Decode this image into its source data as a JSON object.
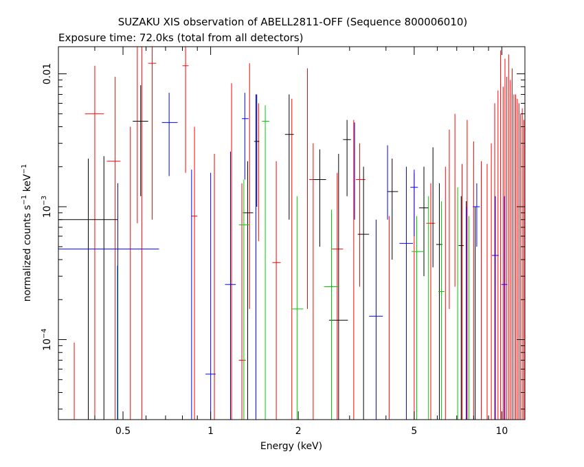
{
  "chart_data": {
    "type": "scatter",
    "title": "SUZAKU XIS observation of ABELL2811-OFF (Sequence 800006010)",
    "subtitle": "Exposure time: 72.0ks (total from all detectors)",
    "xlabel": "Energy (keV)",
    "ylabel_parts": {
      "base": "normalized counts s",
      "exp1": "−1",
      "mid": " keV",
      "exp2": "−1"
    },
    "x_scale": "log",
    "y_scale": "log",
    "xlim": [
      0.3,
      12
    ],
    "ylim": [
      2.5e-05,
      0.016
    ],
    "x_ticks": [
      {
        "value": 0.5,
        "label": "0.5"
      },
      {
        "value": 1,
        "label": "1"
      },
      {
        "value": 2,
        "label": "2"
      },
      {
        "value": 5,
        "label": "5"
      },
      {
        "value": 10,
        "label": "10"
      }
    ],
    "y_ticks": [
      {
        "value": 0.0001,
        "base": "10",
        "exp": "−4"
      },
      {
        "value": 0.001,
        "base": "10",
        "exp": "−3"
      },
      {
        "value": 0.01,
        "label": "0.01"
      }
    ],
    "grid": false,
    "legend": "none",
    "series": [
      {
        "color": "#ff0000",
        "points": [
          {
            "x": 0.34,
            "y": 2.5e-05,
            "ylo": 2.5e-05,
            "yhi": 9.5e-05
          },
          {
            "x": 0.4,
            "y": 0.005,
            "ylo": 2.5e-05,
            "yhi": 0.0115,
            "xlo": 0.37,
            "xhi": 0.43
          },
          {
            "x": 0.47,
            "y": 0.0022,
            "ylo": 2.5e-05,
            "yhi": 0.0095,
            "xlo": 0.44,
            "xhi": 0.49
          },
          {
            "x": 0.53,
            "y": 2.5e-05,
            "ylo": 2.5e-05,
            "yhi": 0.004
          },
          {
            "x": 0.56,
            "y": 0.016,
            "ylo": 0.00075,
            "yhi": 0.016
          },
          {
            "x": 0.58,
            "y": 0.0023,
            "ylo": 2.5e-05,
            "yhi": 0.016
          },
          {
            "x": 0.63,
            "y": 0.012,
            "ylo": 0.0008,
            "yhi": 0.016,
            "xlo": 0.61,
            "xhi": 0.65
          },
          {
            "x": 0.82,
            "y": 0.0115,
            "ylo": 0.0018,
            "yhi": 0.016,
            "xlo": 0.8,
            "xhi": 0.84
          },
          {
            "x": 0.88,
            "y": 0.00085,
            "ylo": 2.5e-05,
            "yhi": 0.004,
            "xlo": 0.86,
            "xhi": 0.9
          },
          {
            "x": 1.03,
            "y": 2.5e-05,
            "ylo": 2.5e-05,
            "yhi": 0.0025
          },
          {
            "x": 1.18,
            "y": 0.0035,
            "ylo": 2.5e-05,
            "yhi": 0.0085
          },
          {
            "x": 1.28,
            "y": 7e-05,
            "ylo": 2.5e-05,
            "yhi": 0.0015,
            "xlo": 1.25,
            "xhi": 1.32
          },
          {
            "x": 1.36,
            "y": 0.0055,
            "ylo": 0.00017,
            "yhi": 0.012
          },
          {
            "x": 1.46,
            "y": 0.003,
            "ylo": 0.00055,
            "yhi": 0.006
          },
          {
            "x": 1.68,
            "y": 0.00038,
            "ylo": 2.5e-05,
            "yhi": 0.0022,
            "xlo": 1.63,
            "xhi": 1.74
          },
          {
            "x": 1.9,
            "y": 0.002,
            "ylo": 2.5e-05,
            "yhi": 0.0065
          },
          {
            "x": 2.15,
            "y": 0.0047,
            "ylo": 0.00017,
            "yhi": 0.011
          },
          {
            "x": 2.25,
            "y": 0.0016,
            "ylo": 2.5e-05,
            "yhi": 0.003,
            "xlo": 2.18,
            "xhi": 2.33
          },
          {
            "x": 2.72,
            "y": 0.00048,
            "ylo": 2.5e-05,
            "yhi": 0.0018,
            "xlo": 2.6,
            "xhi": 2.85
          },
          {
            "x": 3.1,
            "y": 0.0029,
            "ylo": 2.5e-05,
            "yhi": 0.0045
          },
          {
            "x": 3.25,
            "y": 0.0016,
            "ylo": 0.00025,
            "yhi": 0.003,
            "xlo": 3.15,
            "xhi": 3.4
          },
          {
            "x": 4.1,
            "y": 2.5e-05,
            "ylo": 2.5e-05,
            "yhi": 0.00085
          },
          {
            "x": 5.0,
            "y": 2.5e-05,
            "ylo": 2.5e-05,
            "yhi": 0.0018
          },
          {
            "x": 5.7,
            "y": 0.00075,
            "ylo": 2.5e-05,
            "yhi": 0.0015,
            "xlo": 5.5,
            "xhi": 5.9
          },
          {
            "x": 6.4,
            "y": 0.00095,
            "ylo": 2.5e-05,
            "yhi": 0.002
          },
          {
            "x": 6.6,
            "y": 0.0022,
            "ylo": 0.00017,
            "yhi": 0.0038
          },
          {
            "x": 6.9,
            "y": 0.0028,
            "ylo": 0.00025,
            "yhi": 0.005
          },
          {
            "x": 7.3,
            "y": 0.00055,
            "ylo": 2.5e-05,
            "yhi": 0.0021
          },
          {
            "x": 7.6,
            "y": 0.00095,
            "ylo": 2.5e-05,
            "yhi": 0.0045
          },
          {
            "x": 8.0,
            "y": 0.0011,
            "ylo": 2.5e-05,
            "yhi": 0.0031
          },
          {
            "x": 8.5,
            "y": 0.0008,
            "ylo": 2.5e-05,
            "yhi": 0.0022
          },
          {
            "x": 8.9,
            "y": 0.0007,
            "ylo": 2.5e-05,
            "yhi": 0.0021
          },
          {
            "x": 9.2,
            "y": 0.0009,
            "ylo": 2.5e-05,
            "yhi": 0.003
          },
          {
            "x": 9.45,
            "y": 0.0018,
            "ylo": 2.5e-05,
            "yhi": 0.006
          },
          {
            "x": 9.7,
            "y": 0.0012,
            "ylo": 2.5e-05,
            "yhi": 0.0075
          },
          {
            "x": 9.9,
            "y": 0.0028,
            "ylo": 2.5e-05,
            "yhi": 0.015
          },
          {
            "x": 10.1,
            "y": 0.0022,
            "ylo": 2.5e-05,
            "yhi": 0.008
          },
          {
            "x": 10.25,
            "y": 0.004,
            "ylo": 2.5e-05,
            "yhi": 0.013
          },
          {
            "x": 10.4,
            "y": 0.0018,
            "ylo": 2.5e-05,
            "yhi": 0.0095
          },
          {
            "x": 10.55,
            "y": 0.006,
            "ylo": 2.5e-05,
            "yhi": 0.014
          },
          {
            "x": 10.7,
            "y": 0.003,
            "ylo": 2.5e-05,
            "yhi": 0.009
          },
          {
            "x": 10.85,
            "y": 0.0045,
            "ylo": 2.5e-05,
            "yhi": 0.011
          },
          {
            "x": 11.0,
            "y": 0.0055,
            "ylo": 2.5e-05,
            "yhi": 0.007
          },
          {
            "x": 11.15,
            "y": 0.0032,
            "ylo": 2.5e-05,
            "yhi": 0.007
          },
          {
            "x": 11.3,
            "y": 0.005,
            "ylo": 2.5e-05,
            "yhi": 0.0065
          },
          {
            "x": 11.45,
            "y": 0.0025,
            "ylo": 2.5e-05,
            "yhi": 0.006
          },
          {
            "x": 11.6,
            "y": 0.0035,
            "ylo": 2.5e-05,
            "yhi": 0.005
          },
          {
            "x": 11.75,
            "y": 0.002,
            "ylo": 2.5e-05,
            "yhi": 0.0055
          },
          {
            "x": 11.9,
            "y": 0.003,
            "ylo": 2.5e-05,
            "yhi": 0.0045
          }
        ]
      },
      {
        "color": "#000000",
        "points": [
          {
            "x": 0.38,
            "y": 0.0008,
            "ylo": 2.5e-05,
            "yhi": 0.0023,
            "xlo": 0.3,
            "xhi": 0.48
          },
          {
            "x": 0.43,
            "y": 2.5e-05,
            "ylo": 2.5e-05,
            "yhi": 0.0024
          },
          {
            "x": 0.575,
            "y": 0.0044,
            "ylo": 0.0012,
            "yhi": 0.0082,
            "xlo": 0.54,
            "xhi": 0.61
          },
          {
            "x": 1.34,
            "y": 0.0009,
            "ylo": 2.5e-05,
            "yhi": 0.0022,
            "xlo": 1.29,
            "xhi": 1.4
          },
          {
            "x": 1.44,
            "y": 0.0031,
            "ylo": 0.001,
            "yhi": 0.007,
            "xlo": 1.41,
            "xhi": 1.47
          },
          {
            "x": 1.86,
            "y": 0.0035,
            "ylo": 0.0008,
            "yhi": 0.007,
            "xlo": 1.8,
            "xhi": 1.93
          },
          {
            "x": 2.37,
            "y": 0.0016,
            "ylo": 0.0005,
            "yhi": 0.0027,
            "xlo": 2.25,
            "xhi": 2.49
          },
          {
            "x": 2.75,
            "y": 0.00014,
            "ylo": 2.5e-05,
            "yhi": 0.0025,
            "xlo": 2.55,
            "xhi": 2.96
          },
          {
            "x": 2.94,
            "y": 0.0032,
            "ylo": 0.0012,
            "yhi": 0.0045,
            "xlo": 2.85,
            "xhi": 3.03
          },
          {
            "x": 3.35,
            "y": 0.00062,
            "ylo": 2.5e-05,
            "yhi": 0.002,
            "xlo": 3.2,
            "xhi": 3.5
          },
          {
            "x": 4.2,
            "y": 0.0013,
            "ylo": 0.0004,
            "yhi": 0.0023,
            "xlo": 4.05,
            "xhi": 4.4
          },
          {
            "x": 5.4,
            "y": 0.00098,
            "ylo": 0.0003,
            "yhi": 0.002,
            "xlo": 5.2,
            "xhi": 5.6
          },
          {
            "x": 5.8,
            "y": 0.0013,
            "ylo": 0.00035,
            "yhi": 0.0028
          },
          {
            "x": 6.1,
            "y": 0.00052,
            "ylo": 2.5e-05,
            "yhi": 0.0015,
            "xlo": 5.95,
            "xhi": 6.25
          },
          {
            "x": 7.25,
            "y": 0.00051,
            "ylo": 2.5e-05,
            "yhi": 0.0012,
            "xlo": 7.1,
            "xhi": 7.4
          },
          {
            "x": 7.55,
            "y": 0.00036,
            "ylo": 2.5e-05,
            "yhi": 0.0011
          },
          {
            "x": 8.1,
            "y": 0.0002,
            "ylo": 2.5e-05,
            "yhi": 0.001
          }
        ]
      },
      {
        "color": "#00cc00",
        "points": [
          {
            "x": 0.478,
            "y": 2.5e-05,
            "ylo": 2.5e-05,
            "yhi": 0.00036
          },
          {
            "x": 1.3,
            "y": 0.00073,
            "ylo": 2.5e-05,
            "yhi": 0.0016,
            "xlo": 1.25,
            "xhi": 1.36
          },
          {
            "x": 1.54,
            "y": 0.0044,
            "ylo": 2.5e-05,
            "yhi": 0.0058,
            "xlo": 1.5,
            "xhi": 1.59
          },
          {
            "x": 1.98,
            "y": 0.00017,
            "ylo": 2.5e-05,
            "yhi": 0.0012,
            "xlo": 1.89,
            "xhi": 2.08
          },
          {
            "x": 2.6,
            "y": 0.00025,
            "ylo": 2.5e-05,
            "yhi": 0.00095,
            "xlo": 2.45,
            "xhi": 2.75
          },
          {
            "x": 5.1,
            "y": 0.00046,
            "ylo": 2.5e-05,
            "yhi": 0.00085,
            "xlo": 4.9,
            "xhi": 5.4
          },
          {
            "x": 5.6,
            "y": 0.00068,
            "ylo": 2.5e-05,
            "yhi": 0.0012
          },
          {
            "x": 6.2,
            "y": 0.00023,
            "ylo": 2.5e-05,
            "yhi": 0.0011,
            "xlo": 6.05,
            "xhi": 6.35
          },
          {
            "x": 7.05,
            "y": 0.00085,
            "ylo": 2.5e-05,
            "yhi": 0.0014
          },
          {
            "x": 7.7,
            "y": 0.00035,
            "ylo": 2.5e-05,
            "yhi": 0.00085
          }
        ]
      },
      {
        "color": "#0000ff",
        "points": [
          {
            "x": 0.48,
            "y": 0.00048,
            "ylo": 2.5e-05,
            "yhi": 0.0015,
            "xlo": 0.3,
            "xhi": 0.665
          },
          {
            "x": 0.72,
            "y": 0.0043,
            "ylo": 0.0017,
            "yhi": 0.0072,
            "xlo": 0.68,
            "xhi": 0.77
          },
          {
            "x": 0.86,
            "y": 2.5e-05,
            "ylo": 2.5e-05,
            "yhi": 0.0019
          },
          {
            "x": 1.0,
            "y": 5.5e-05,
            "ylo": 2.5e-05,
            "yhi": 0.0018,
            "xlo": 0.96,
            "xhi": 1.04
          },
          {
            "x": 1.17,
            "y": 0.00026,
            "ylo": 2.5e-05,
            "yhi": 0.0026,
            "xlo": 1.12,
            "xhi": 1.22
          },
          {
            "x": 1.31,
            "y": 0.0046,
            "ylo": 0.0016,
            "yhi": 0.0072,
            "xlo": 1.28,
            "xhi": 1.35
          },
          {
            "x": 1.43,
            "y": 2.5e-05,
            "ylo": 2.5e-05,
            "yhi": 0.007
          },
          {
            "x": 3.12,
            "y": 0.0017,
            "ylo": 0.0008,
            "yhi": 0.0043
          },
          {
            "x": 3.7,
            "y": 0.00015,
            "ylo": 2.5e-05,
            "yhi": 0.0008,
            "xlo": 3.5,
            "xhi": 3.9
          },
          {
            "x": 4.05,
            "y": 0.0017,
            "ylo": 0.0008,
            "yhi": 0.0029
          },
          {
            "x": 4.7,
            "y": 0.00053,
            "ylo": 2.5e-05,
            "yhi": 0.002,
            "xlo": 4.45,
            "xhi": 4.95
          },
          {
            "x": 5.0,
            "y": 0.0014,
            "ylo": 0.0006,
            "yhi": 0.0019,
            "xlo": 4.85,
            "xhi": 5.15
          },
          {
            "x": 7.55,
            "y": 0.0004,
            "ylo": 2.5e-05,
            "yhi": 0.001
          },
          {
            "x": 8.2,
            "y": 0.001,
            "ylo": 0.0005,
            "yhi": 0.0015,
            "xlo": 7.95,
            "xhi": 8.4
          },
          {
            "x": 9.5,
            "y": 0.00043,
            "ylo": 2.5e-05,
            "yhi": 0.0012,
            "xlo": 9.25,
            "xhi": 9.75
          },
          {
            "x": 10.2,
            "y": 0.00026,
            "ylo": 2.5e-05,
            "yhi": 0.0012,
            "xlo": 9.95,
            "xhi": 10.45
          }
        ]
      }
    ]
  }
}
